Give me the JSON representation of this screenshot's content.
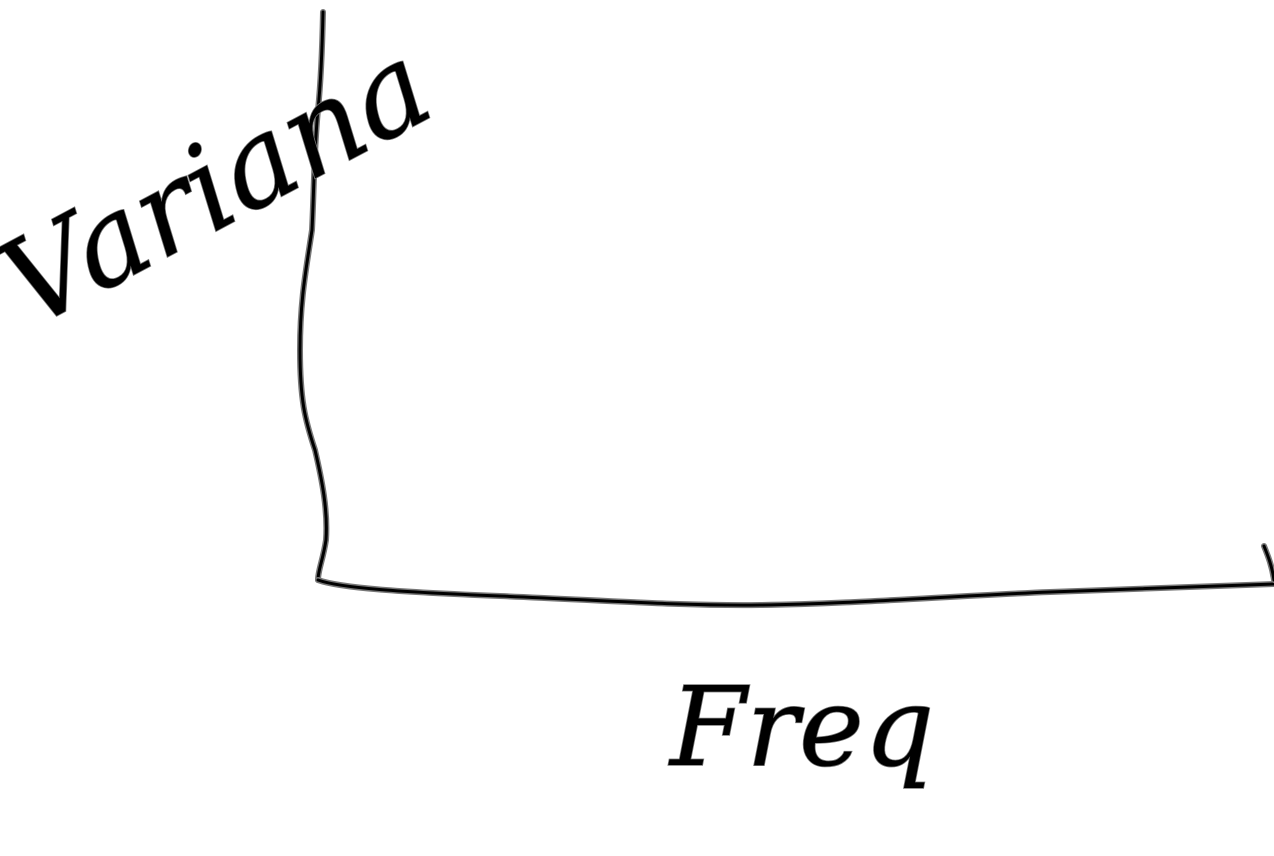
{
  "sketch": {
    "y_axis_label": "Variana",
    "x_axis_label": "Freq"
  }
}
